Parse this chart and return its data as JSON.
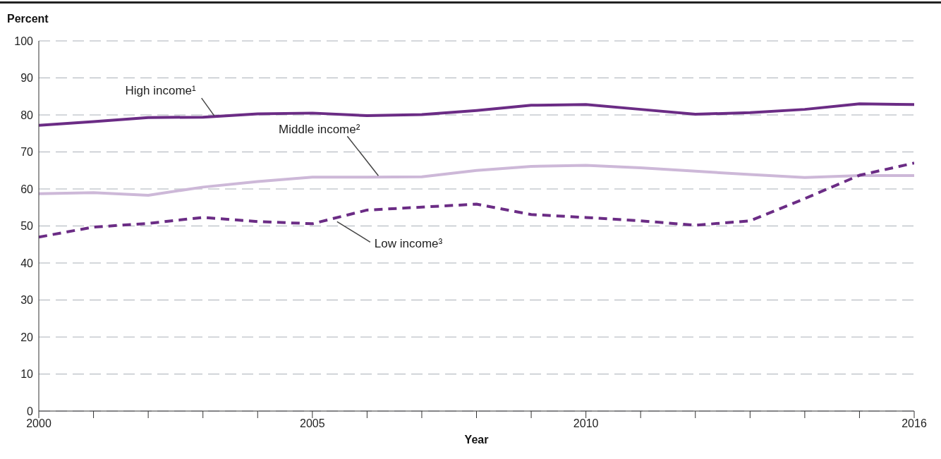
{
  "chart_data": {
    "type": "line",
    "ylabel": "Percent",
    "xlabel": "Year",
    "x": [
      2000,
      2001,
      2002,
      2003,
      2004,
      2005,
      2006,
      2007,
      2008,
      2009,
      2010,
      2011,
      2012,
      2013,
      2014,
      2015,
      2016
    ],
    "series": [
      {
        "name": "High income¹",
        "color": "#6b2c85",
        "line_style": "solid",
        "values": [
          77.2,
          78.2,
          79.3,
          79.4,
          80.3,
          80.5,
          79.8,
          80.1,
          81.2,
          82.6,
          82.8,
          81.5,
          80.2,
          80.6,
          81.5,
          83.0,
          82.8
        ]
      },
      {
        "name": "Middle income²",
        "color": "#cdb8d8",
        "line_style": "solid",
        "values": [
          58.7,
          59.0,
          58.3,
          60.5,
          62.0,
          63.2,
          63.2,
          63.3,
          65.0,
          66.1,
          66.4,
          65.7,
          64.8,
          63.9,
          63.1,
          63.6,
          63.6
        ]
      },
      {
        "name": "Low income³",
        "color": "#6b2c85",
        "line_style": "dashed",
        "values": [
          47.0,
          49.7,
          50.7,
          52.3,
          51.2,
          50.6,
          54.3,
          55.1,
          55.9,
          53.1,
          52.3,
          51.4,
          50.2,
          51.4,
          57.4,
          63.7,
          67.0
        ]
      }
    ],
    "xlim": [
      2000,
      2016
    ],
    "xticks": [
      2000,
      {
        "value": 2001,
        "label": null
      },
      {
        "value": 2002,
        "label": null
      },
      {
        "value": 2003,
        "label": null
      },
      {
        "value": 2004,
        "label": null
      },
      2005,
      {
        "value": 2006,
        "label": null
      },
      {
        "value": 2007,
        "label": null
      },
      {
        "value": 2008,
        "label": null
      },
      {
        "value": 2009,
        "label": null
      },
      2010,
      {
        "value": 2011,
        "label": null
      },
      {
        "value": 2012,
        "label": null
      },
      {
        "value": 2013,
        "label": null
      },
      {
        "value": 2014,
        "label": null
      },
      {
        "value": 2015,
        "label": null
      },
      2016
    ],
    "ylim": [
      0,
      100
    ],
    "yticks": [
      0,
      10,
      20,
      30,
      40,
      50,
      60,
      70,
      80,
      90,
      100
    ],
    "grid": "y",
    "marker": "none",
    "legend": false
  }
}
